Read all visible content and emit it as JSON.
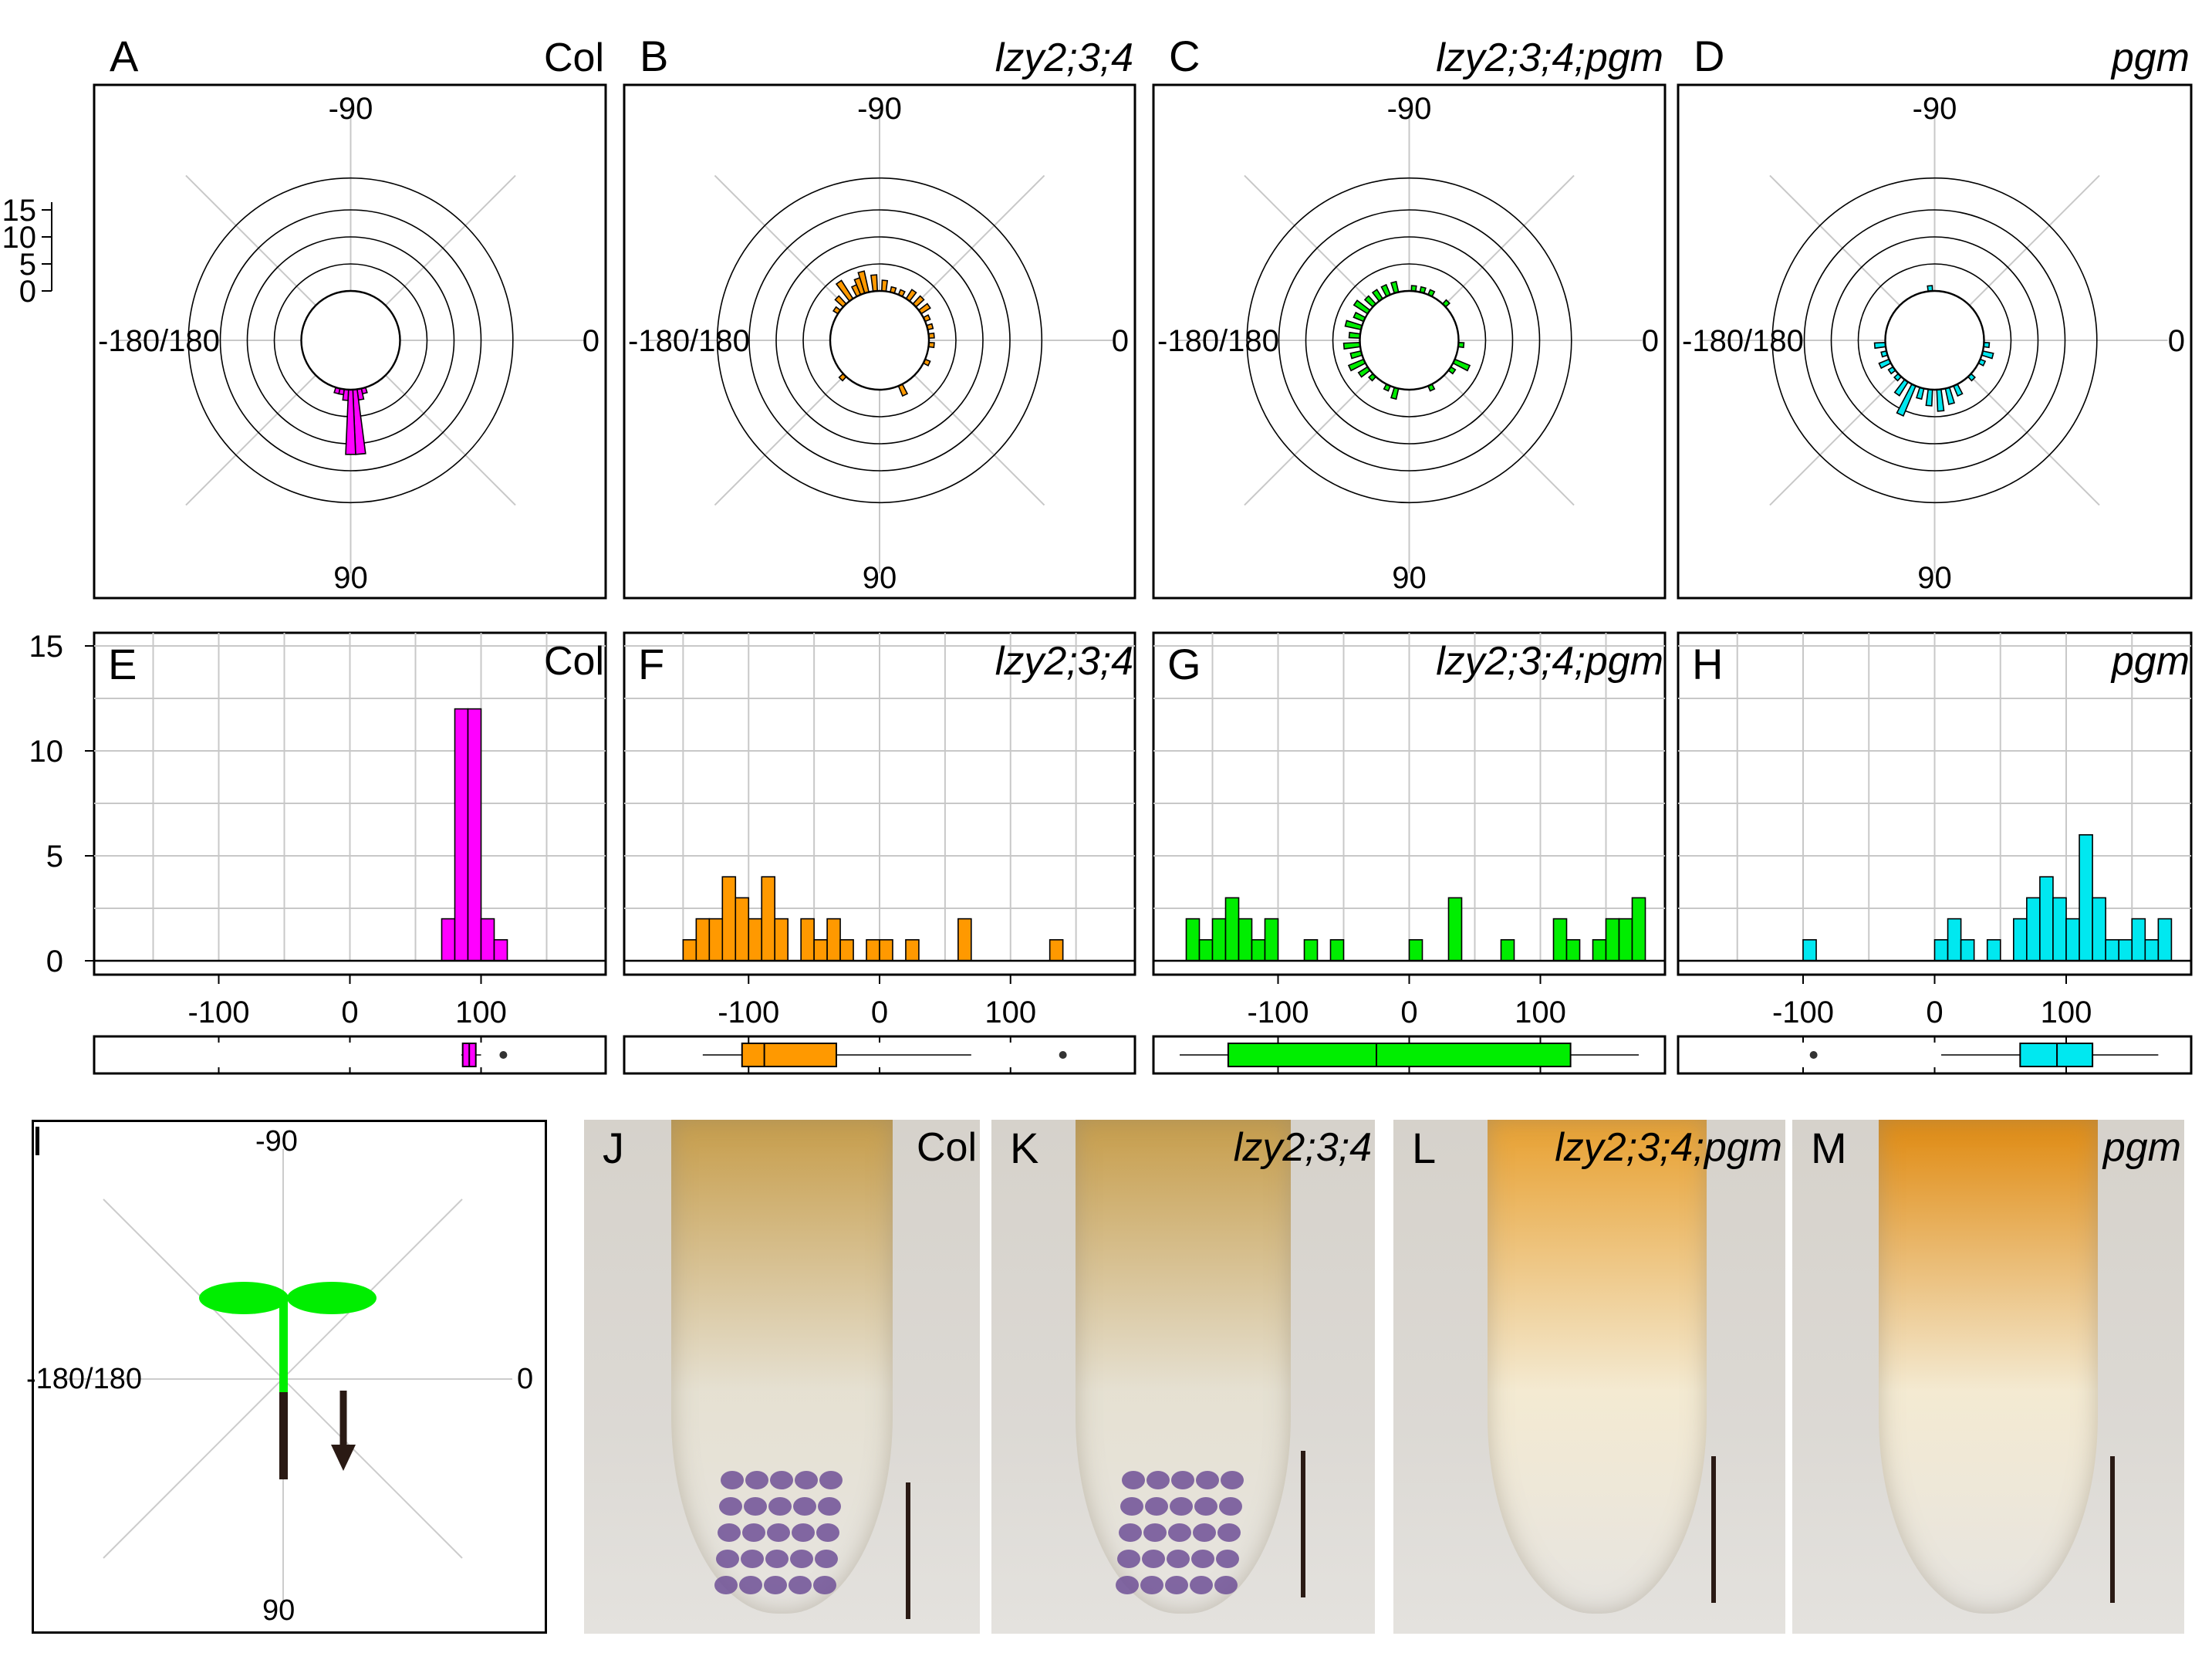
{
  "panels": {
    "A": {
      "letter": "A",
      "label": "Col",
      "italic": false
    },
    "B": {
      "letter": "B",
      "label": "lzy2;3;4",
      "italic": true
    },
    "C": {
      "letter": "C",
      "label": "lzy2;3;4;pgm",
      "italic": true
    },
    "D": {
      "letter": "D",
      "label": "pgm",
      "italic": true
    },
    "E": {
      "letter": "E",
      "label": "Col",
      "italic": false
    },
    "F": {
      "letter": "F",
      "label": "lzy2;3;4",
      "italic": true
    },
    "G": {
      "letter": "G",
      "label": "lzy2;3;4;pgm",
      "italic": true
    },
    "H": {
      "letter": "H",
      "label": "pgm",
      "italic": true
    },
    "I": {
      "letter": "I"
    },
    "J": {
      "letter": "J",
      "label": "Col",
      "italic": false
    },
    "K": {
      "letter": "K",
      "label": "lzy2;3;4",
      "italic": true
    },
    "L": {
      "letter": "L",
      "label": "lzy2;3;4;pgm",
      "italic": true
    },
    "M": {
      "letter": "M",
      "label": "pgm",
      "italic": true
    }
  },
  "polar_labels": {
    "top": "-90",
    "bottom": "90",
    "left": "-180/180",
    "right": "0"
  },
  "colors": {
    "Col": "#ff00ff",
    "lzy234": "#ff9900",
    "lzy234pgm": "#00ee00",
    "pgm": "#00e8f0",
    "seedling": "#00ee00",
    "root": "#2a1a14"
  },
  "chart_data": [
    {
      "type": "polar-histogram",
      "panel": "A",
      "r_ticks": [
        0,
        5,
        10,
        15
      ],
      "series_color": "#ff00ff",
      "bins": [
        [
          75,
          1
        ],
        [
          80,
          2
        ],
        [
          85,
          12
        ],
        [
          90,
          12
        ],
        [
          95,
          2
        ],
        [
          100,
          1
        ],
        [
          105,
          1
        ]
      ]
    },
    {
      "type": "polar-histogram",
      "panel": "B",
      "r_ticks": [
        0,
        5,
        10,
        15
      ],
      "series_color": "#ff9900",
      "bins": [
        [
          -145,
          1
        ],
        [
          -135,
          2
        ],
        [
          -125,
          4
        ],
        [
          -115,
          2
        ],
        [
          -110,
          3
        ],
        [
          -105,
          4
        ],
        [
          -95,
          3
        ],
        [
          -85,
          2
        ],
        [
          -75,
          1
        ],
        [
          -65,
          1
        ],
        [
          -55,
          2
        ],
        [
          -45,
          2
        ],
        [
          -35,
          2
        ],
        [
          -25,
          1
        ],
        [
          -15,
          1
        ],
        [
          -5,
          1
        ],
        [
          5,
          1
        ],
        [
          25,
          1
        ],
        [
          65,
          2
        ],
        [
          135,
          1
        ]
      ]
    },
    {
      "type": "polar-histogram",
      "panel": "C",
      "r_ticks": [
        0,
        5,
        10,
        15
      ],
      "series_color": "#00ee00",
      "bins": [
        [
          -175,
          2
        ],
        [
          -165,
          3
        ],
        [
          -155,
          2
        ],
        [
          -145,
          3
        ],
        [
          -135,
          2
        ],
        [
          -125,
          2
        ],
        [
          -115,
          2
        ],
        [
          -105,
          2
        ],
        [
          -85,
          1
        ],
        [
          -75,
          1
        ],
        [
          -65,
          1
        ],
        [
          -45,
          1
        ],
        [
          5,
          1
        ],
        [
          25,
          3
        ],
        [
          35,
          1
        ],
        [
          65,
          1
        ],
        [
          105,
          2
        ],
        [
          115,
          1
        ],
        [
          135,
          1
        ],
        [
          145,
          2
        ],
        [
          155,
          3
        ],
        [
          165,
          2
        ],
        [
          175,
          3
        ]
      ]
    },
    {
      "type": "polar-histogram",
      "panel": "D",
      "r_ticks": [
        0,
        5,
        10,
        15
      ],
      "series_color": "#00e8f0",
      "bins": [
        [
          -95,
          1
        ],
        [
          5,
          1
        ],
        [
          15,
          2
        ],
        [
          25,
          1
        ],
        [
          45,
          1
        ],
        [
          65,
          2
        ],
        [
          75,
          3
        ],
        [
          85,
          4
        ],
        [
          95,
          3
        ],
        [
          105,
          2
        ],
        [
          115,
          6
        ],
        [
          125,
          3
        ],
        [
          135,
          1
        ],
        [
          145,
          1
        ],
        [
          155,
          2
        ],
        [
          165,
          1
        ],
        [
          175,
          2
        ]
      ]
    },
    {
      "type": "bar",
      "panel": "E",
      "xlim": [
        -195,
        195
      ],
      "ylim": [
        0,
        15
      ],
      "x_ticks": [
        -100,
        0,
        100
      ],
      "y_ticks": [
        0,
        5,
        10,
        15
      ],
      "series_color": "#ff00ff",
      "bins": [
        [
          75,
          2
        ],
        [
          85,
          12
        ],
        [
          95,
          12
        ],
        [
          105,
          2
        ],
        [
          115,
          1
        ]
      ],
      "box": {
        "min": 85,
        "q1": 86,
        "median": 91,
        "q3": 96,
        "max": 100,
        "outliers": [
          117
        ]
      }
    },
    {
      "type": "bar",
      "panel": "F",
      "xlim": [
        -195,
        195
      ],
      "ylim": [
        0,
        15
      ],
      "x_ticks": [
        -100,
        0,
        100
      ],
      "y_ticks": [
        0,
        5,
        10,
        15
      ],
      "series_color": "#ff9900",
      "bins": [
        [
          -145,
          1
        ],
        [
          -135,
          2
        ],
        [
          -125,
          2
        ],
        [
          -115,
          4
        ],
        [
          -105,
          3
        ],
        [
          -95,
          2
        ],
        [
          -85,
          4
        ],
        [
          -75,
          2
        ],
        [
          -55,
          2
        ],
        [
          -45,
          1
        ],
        [
          -35,
          2
        ],
        [
          -25,
          1
        ],
        [
          -5,
          1
        ],
        [
          5,
          1
        ],
        [
          25,
          1
        ],
        [
          65,
          2
        ],
        [
          135,
          1
        ]
      ],
      "box": {
        "min": -135,
        "q1": -105,
        "median": -88,
        "q3": -33,
        "max": 70,
        "outliers": [
          140
        ]
      }
    },
    {
      "type": "bar",
      "panel": "G",
      "xlim": [
        -195,
        195
      ],
      "ylim": [
        0,
        15
      ],
      "x_ticks": [
        -100,
        0,
        100
      ],
      "y_ticks": [
        0,
        5,
        10,
        15
      ],
      "series_color": "#00ee00",
      "bins": [
        [
          -165,
          2
        ],
        [
          -155,
          1
        ],
        [
          -145,
          2
        ],
        [
          -135,
          3
        ],
        [
          -125,
          2
        ],
        [
          -115,
          1
        ],
        [
          -105,
          2
        ],
        [
          -75,
          1
        ],
        [
          -55,
          1
        ],
        [
          5,
          1
        ],
        [
          35,
          3
        ],
        [
          75,
          1
        ],
        [
          115,
          2
        ],
        [
          125,
          1
        ],
        [
          145,
          1
        ],
        [
          155,
          2
        ],
        [
          165,
          2
        ],
        [
          175,
          3
        ]
      ],
      "box": {
        "min": -175,
        "q1": -138,
        "median": -25,
        "q3": 123,
        "max": 175,
        "outliers": []
      }
    },
    {
      "type": "bar",
      "panel": "H",
      "xlim": [
        -195,
        195
      ],
      "ylim": [
        0,
        15
      ],
      "x_ticks": [
        -100,
        0,
        100
      ],
      "y_ticks": [
        0,
        5,
        10,
        15
      ],
      "series_color": "#00e8f0",
      "bins": [
        [
          -95,
          1
        ],
        [
          5,
          1
        ],
        [
          15,
          2
        ],
        [
          25,
          1
        ],
        [
          45,
          1
        ],
        [
          65,
          2
        ],
        [
          75,
          3
        ],
        [
          85,
          4
        ],
        [
          95,
          3
        ],
        [
          105,
          2
        ],
        [
          115,
          6
        ],
        [
          125,
          3
        ],
        [
          135,
          1
        ],
        [
          145,
          1
        ],
        [
          155,
          2
        ],
        [
          165,
          1
        ],
        [
          175,
          2
        ]
      ],
      "box": {
        "min": 5,
        "q1": 65,
        "median": 93,
        "q3": 120,
        "max": 170,
        "outliers": [
          -92
        ]
      }
    }
  ]
}
